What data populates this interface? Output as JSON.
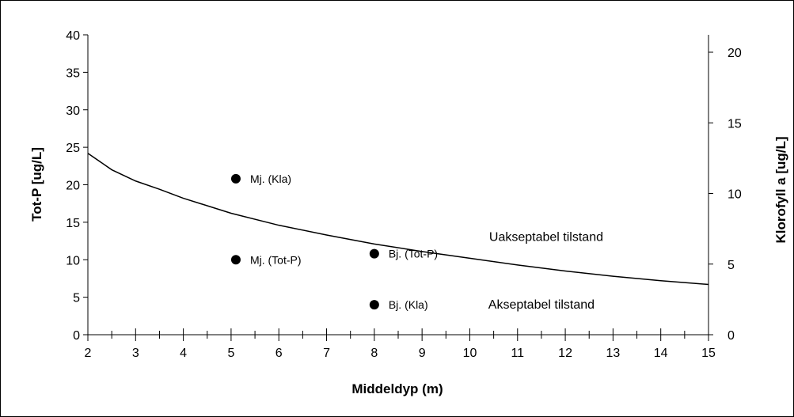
{
  "chart_data": {
    "type": "scatter",
    "xlabel": "Middeldyp (m)",
    "ylabel_left": "Tot-P [ug/L]",
    "ylabel_right": "Klorofyll a [ug/L]",
    "xlim": [
      2,
      15
    ],
    "ylim_left": [
      0,
      40
    ],
    "ylim_right": [
      0,
      21
    ],
    "x_ticks": [
      2,
      3,
      4,
      5,
      6,
      7,
      8,
      9,
      10,
      11,
      12,
      13,
      14,
      15
    ],
    "y_left_ticks": [
      0,
      5,
      10,
      15,
      20,
      25,
      30,
      35,
      40
    ],
    "y_right_ticks": [
      0,
      5,
      10,
      15,
      20
    ],
    "grid": false,
    "curve": {
      "x": [
        2,
        2.5,
        3,
        3.5,
        4,
        5,
        6,
        7,
        8,
        9,
        10,
        11,
        12,
        13,
        14,
        15
      ],
      "y": [
        24.2,
        22.0,
        20.5,
        19.4,
        18.2,
        16.2,
        14.6,
        13.3,
        12.1,
        11.1,
        10.2,
        9.3,
        8.5,
        7.8,
        7.2,
        6.7
      ]
    },
    "points": [
      {
        "label": "Mj. (Kla)",
        "x": 5.1,
        "y": 20.8
      },
      {
        "label": "Mj. (Tot-P)",
        "x": 5.1,
        "y": 10.0
      },
      {
        "label": "Bj. (Tot-P)",
        "x": 8.0,
        "y": 10.8
      },
      {
        "label": "Bj. (Kla)",
        "x": 8.0,
        "y": 4.0
      }
    ],
    "annotations": [
      {
        "text": "Uakseptabel tilstand",
        "x": 11.6,
        "y": 12.5
      },
      {
        "text": "Akseptabel tilstand",
        "x": 11.5,
        "y": 3.5
      }
    ]
  }
}
